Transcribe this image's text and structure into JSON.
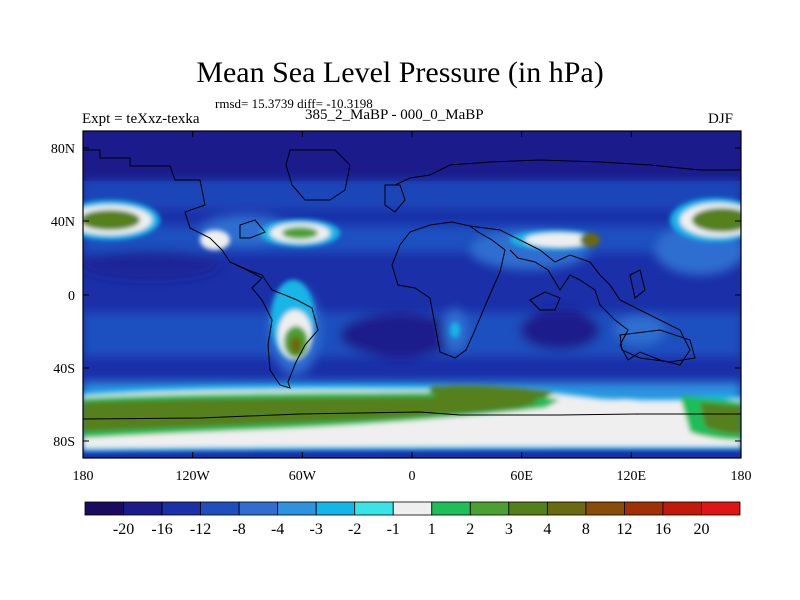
{
  "title": "Mean Sea Level Pressure (in hPa)",
  "stats_text": "rmsd= 15.3739 diff= -10.3198",
  "left_label": "Expt = teXxz-texka",
  "center_label": "385_2_MaBP - 000_0_MaBP",
  "right_label": "DJF",
  "y_ticks": [
    "80N",
    "40N",
    "0",
    "40S",
    "80S"
  ],
  "x_ticks": [
    "180",
    "120W",
    "60W",
    "0",
    "60E",
    "120E",
    "180"
  ],
  "colorbar": {
    "colors": [
      "#1a0a60",
      "#1b1b8c",
      "#1a2fa8",
      "#1f4fbf",
      "#2f6ed0",
      "#2f92e0",
      "#13b6e6",
      "#38e4e8",
      "#efefef",
      "#1fbe58",
      "#4aa030",
      "#54801a",
      "#6a6a10",
      "#8a4c08",
      "#a03006",
      "#bf1a0a",
      "#e01414"
    ],
    "labels": [
      "-20",
      "-16",
      "-12",
      "-8",
      "-4",
      "-3",
      "-2",
      "-1",
      "1",
      "2",
      "3",
      "4",
      "8",
      "12",
      "16",
      "20"
    ]
  },
  "map_data": {
    "type": "filled-contour map",
    "variable": "Mean Sea Level Pressure difference",
    "units": "hPa",
    "projection": "cylindrical equidistant",
    "lon_range": [
      -180,
      180
    ],
    "lat_range": [
      -90,
      90
    ],
    "season": "DJF"
  }
}
